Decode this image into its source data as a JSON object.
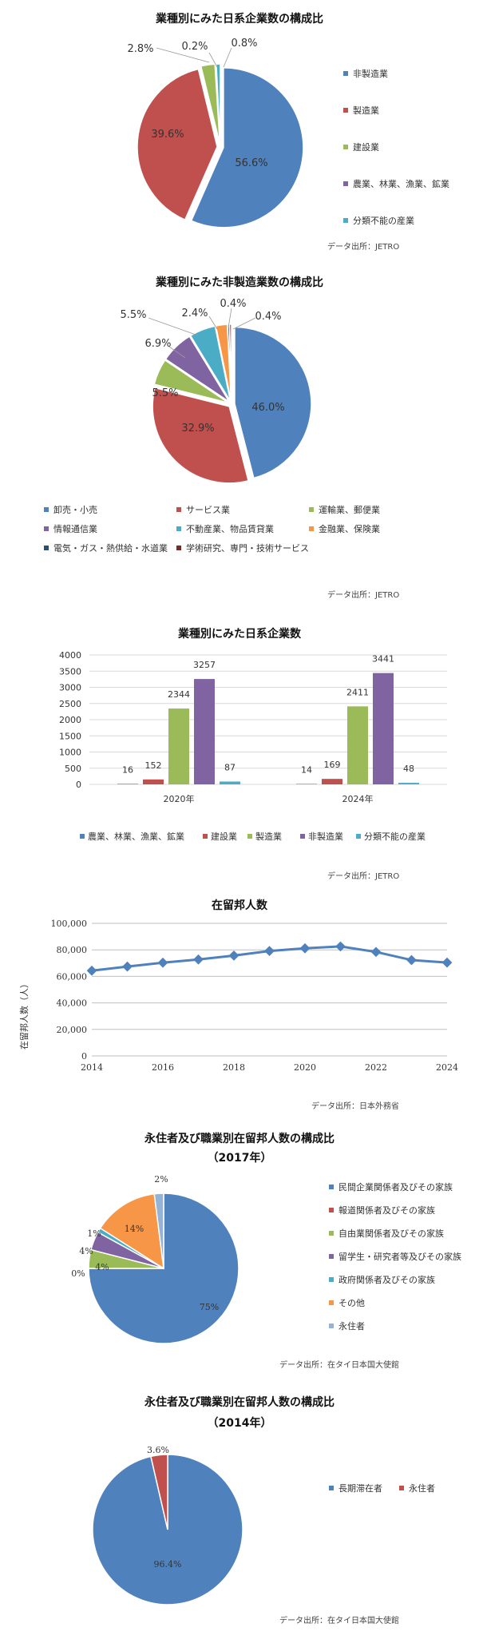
{
  "chart_data": [
    {
      "type": "pie",
      "title": "業種別にみた日系企業数の構成比",
      "categories": [
        "非製造業",
        "製造業",
        "建設業",
        "農業、林業、漁業、鉱業",
        "分類不能の産業"
      ],
      "values": [
        56.6,
        39.6,
        2.8,
        0.2,
        0.8
      ],
      "value_labels": [
        "56.6%",
        "39.6%",
        "2.8%",
        "0.2%",
        "0.8%"
      ],
      "colors": [
        "#4f81bd",
        "#c0504d",
        "#9bbb59",
        "#8064a2",
        "#4bacc6"
      ],
      "legend": "right",
      "source": "データ出所：JETRO"
    },
    {
      "type": "pie",
      "title": "業種別にみた非製造業数の構成比",
      "categories": [
        "卸売・小売",
        "サービス業",
        "運輸業、郵便業",
        "情報通信業",
        "不動産業、物品賃貸業",
        "金融業、保険業",
        "電気・ガス・熱供給・水道業",
        "学術研究、専門・技術サービス"
      ],
      "values": [
        46.0,
        32.9,
        5.5,
        6.9,
        5.5,
        2.4,
        0.4,
        0.4
      ],
      "value_labels": [
        "46.0%",
        "32.9%",
        "5.5%",
        "6.9%",
        "5.5%",
        "2.4%",
        "0.4%",
        "0.4%"
      ],
      "colors": [
        "#4f81bd",
        "#c0504d",
        "#9bbb59",
        "#8064a2",
        "#4bacc6",
        "#f79646",
        "#2c4d75",
        "#772c2a"
      ],
      "legend": "bottom",
      "source": "データ出所：JETRO"
    },
    {
      "type": "bar",
      "title": "業種別にみた日系企業数",
      "categories": [
        "2020年",
        "2024年"
      ],
      "series": [
        {
          "name": "農業、林業、漁業、鉱業",
          "values": [
            16,
            14
          ],
          "color": "#4f81bd"
        },
        {
          "name": "建設業",
          "values": [
            152,
            169
          ],
          "color": "#c0504d"
        },
        {
          "name": "製造業",
          "values": [
            2344,
            2411
          ],
          "color": "#9bbb59"
        },
        {
          "name": "非製造業",
          "values": [
            3257,
            3441
          ],
          "color": "#8064a2"
        },
        {
          "name": "分類不能の産業",
          "values": [
            87,
            48
          ],
          "color": "#4bacc6"
        }
      ],
      "ylim": [
        0,
        4000
      ],
      "yticks": [
        "0",
        "500",
        "1000",
        "1500",
        "2000",
        "2500",
        "3000",
        "3500",
        "4000"
      ],
      "grid": true,
      "legend": "bottom",
      "source": "データ出所：JETRO"
    },
    {
      "type": "line",
      "title": "在留邦人数",
      "ylabel": "在留邦人数（人）",
      "x": [
        2014,
        2015,
        2016,
        2017,
        2018,
        2019,
        2020,
        2021,
        2022,
        2023,
        2024
      ],
      "values": [
        64285,
        67424,
        70337,
        72754,
        75647,
        79123,
        81187,
        82574,
        78431,
        72308,
        70421
      ],
      "ylim": [
        0,
        100000
      ],
      "yticks": [
        "0",
        "20,000",
        "40,000",
        "60,000",
        "80,000",
        "100,000"
      ],
      "xticks": [
        "2014",
        "2016",
        "2018",
        "2020",
        "2022",
        "2024"
      ],
      "color": "#4f81bd",
      "grid": true,
      "source": "データ出所：日本外務省"
    },
    {
      "type": "pie",
      "title": "永住者及び職業別在留邦人数の構成比",
      "subtitle": "（2017年）",
      "categories": [
        "民間企業関係者及びその家族",
        "報道関係者及びその家族",
        "自由業関係者及びその家族",
        "留学生・研究者等及びその家族",
        "政府関係者及びその家族",
        "その他",
        "永住者"
      ],
      "values": [
        75,
        0,
        4,
        4,
        1,
        14,
        2
      ],
      "value_labels": [
        "75%",
        "0%",
        "4%",
        "4%",
        "1%",
        "14%",
        "2%"
      ],
      "colors": [
        "#4f81bd",
        "#c0504d",
        "#9bbb59",
        "#8064a2",
        "#4bacc6",
        "#f79646",
        "#95b3d7"
      ],
      "legend": "right",
      "source": "データ出所：在タイ日本国大使館"
    },
    {
      "type": "pie",
      "title": "永住者及び職業別在留邦人数の構成比",
      "subtitle": "（2014年）",
      "categories": [
        "長期滞在者",
        "永住者"
      ],
      "values": [
        96.4,
        3.6
      ],
      "value_labels": [
        "96.4%",
        "3.6%"
      ],
      "colors": [
        "#4f81bd",
        "#c0504d"
      ],
      "legend": "right",
      "source": "データ出所：在タイ日本国大使館"
    }
  ]
}
